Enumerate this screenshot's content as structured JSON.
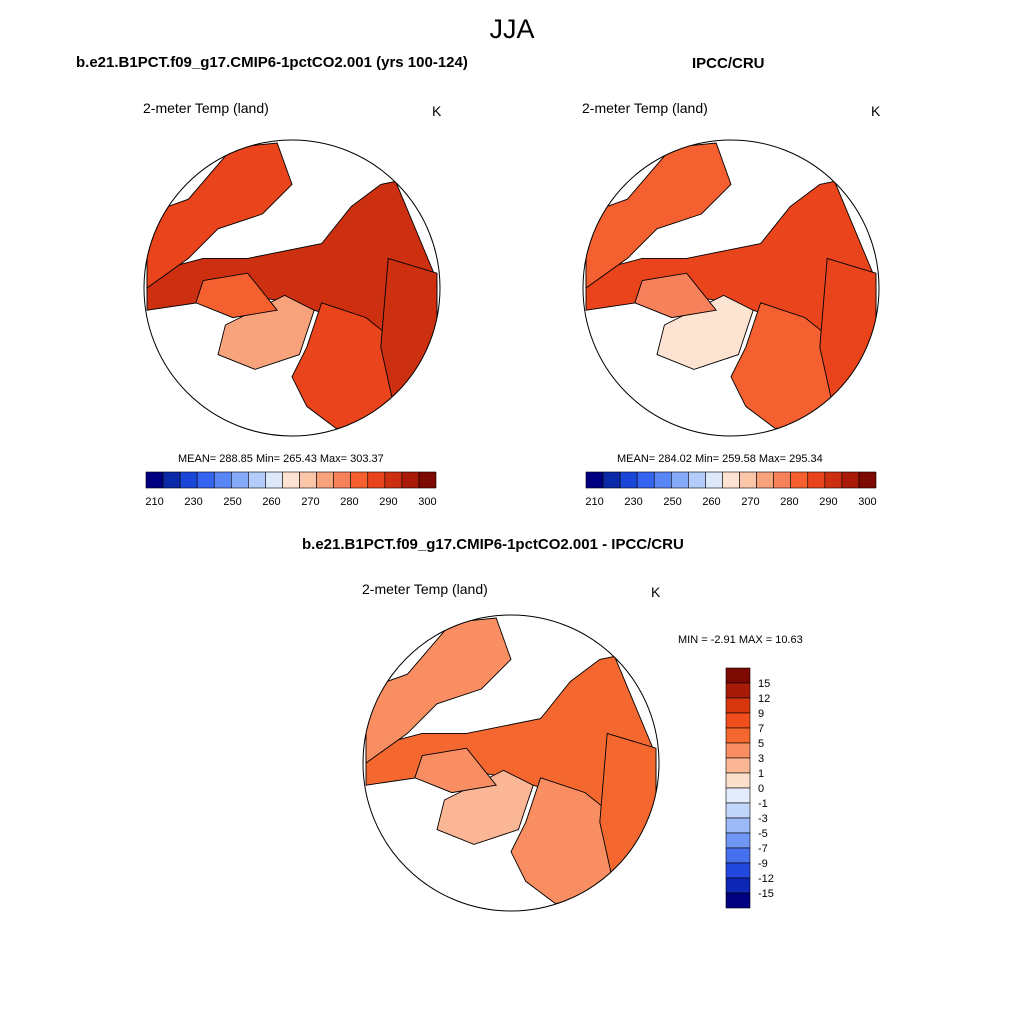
{
  "title": "JJA",
  "panels": [
    {
      "title": "b.e21.B1PCT.f09_g17.CMIP6-1pctCO2.001 (yrs 100-124)",
      "variable": "2-meter Temp (land)",
      "units": "K",
      "stats": "MEAN= 288.85  Min= 265.43  Max= 303.37",
      "field": "model"
    },
    {
      "title": "IPCC/CRU",
      "variable": "2-meter Temp (land)",
      "units": "K",
      "stats": "MEAN= 284.02  Min= 259.58  Max= 295.34",
      "field": "obs"
    },
    {
      "title": "b.e21.B1PCT.f09_g17.CMIP6-1pctCO2.001 - IPCC/CRU",
      "variable": "2-meter Temp (land)",
      "units": "K",
      "stats": "MIN =  -2.91 MAX =  10.63",
      "field": "diff"
    }
  ],
  "colorbar_abs": {
    "labels": [
      "210",
      "230",
      "250",
      "260",
      "270",
      "280",
      "290",
      "300"
    ],
    "colors": [
      "#000080",
      "#0a2aa8",
      "#1a46d8",
      "#3464f0",
      "#5a86f5",
      "#86aaf7",
      "#b4ccf9",
      "#dde8fb",
      "#fde4d2",
      "#fbc6a8",
      "#f9a37d",
      "#f7815a",
      "#f4602f",
      "#e9441b",
      "#cc3010",
      "#a81b08",
      "#7d0a02"
    ]
  },
  "colorbar_diff": {
    "labels": [
      "15",
      "12",
      "9",
      "7",
      "5",
      "3",
      "1",
      "0",
      "-1",
      "-3",
      "-5",
      "-7",
      "-9",
      "-12",
      "-15"
    ],
    "colors": [
      "#7d0a02",
      "#a81b08",
      "#d8360f",
      "#f04e1c",
      "#f4682f",
      "#f88e62",
      "#fbb695",
      "#fde0cc",
      "#e4ecfb",
      "#c2d6fa",
      "#9bbaf7",
      "#6f97f3",
      "#4670ee",
      "#2348e0",
      "#0e26b4",
      "#000080"
    ]
  }
}
